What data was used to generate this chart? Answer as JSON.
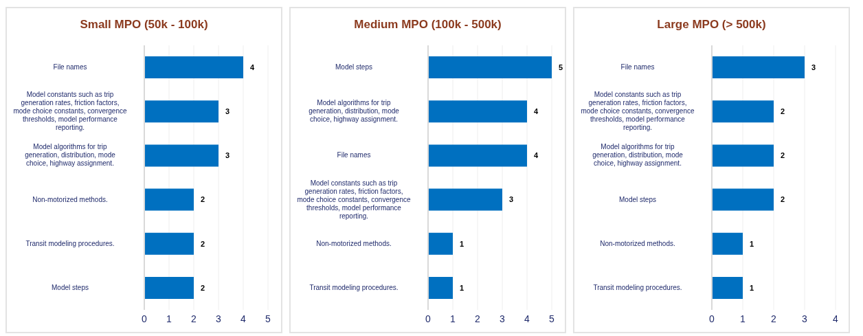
{
  "chart_data": [
    {
      "type": "bar",
      "orientation": "horizontal",
      "title": "Small MPO (50k - 100k)",
      "categories": [
        "File names",
        "Model constants such as trip generation rates, friction factors, mode choice constants, convergence thresholds, model performance reporting.",
        "Model algorithms for trip generation, distribution, mode choice, highway assignment.",
        "Non-motorized methods.",
        "Transit modeling procedures.",
        "Model steps"
      ],
      "values": [
        4,
        3,
        3,
        2,
        2,
        2
      ],
      "color": "#0070c0",
      "xlim": [
        0,
        5
      ],
      "xticks": [
        0,
        1,
        2,
        3,
        4,
        5
      ],
      "grid": "x",
      "data_labels": true
    },
    {
      "type": "bar",
      "orientation": "horizontal",
      "title": "Medium MPO (100k - 500k)",
      "categories": [
        "Model steps",
        "Model algorithms for trip generation, distribution, mode choice, highway assignment.",
        "File names",
        "Model constants such as trip generation rates, friction factors, mode choice constants, convergence thresholds, model performance reporting.",
        "Non-motorized methods.",
        "Transit modeling procedures."
      ],
      "values": [
        5,
        4,
        4,
        3,
        1,
        1
      ],
      "color": "#0070c0",
      "xlim": [
        0,
        5
      ],
      "xticks": [
        0,
        1,
        2,
        3,
        4,
        5
      ],
      "grid": "x",
      "data_labels": true
    },
    {
      "type": "bar",
      "orientation": "horizontal",
      "title": "Large MPO (> 500k)",
      "categories": [
        "File names",
        "Model constants such as trip generation rates, friction factors, mode choice constants, convergence thresholds, model performance reporting.",
        "Model algorithms for trip generation, distribution, mode choice, highway assignment.",
        "Model steps",
        "Non-motorized methods.",
        "Transit modeling procedures."
      ],
      "values": [
        3,
        2,
        2,
        2,
        1,
        1
      ],
      "color": "#0070c0",
      "xlim": [
        0,
        4
      ],
      "xticks": [
        0,
        1,
        2,
        3,
        4
      ],
      "grid": "x",
      "data_labels": true
    }
  ]
}
